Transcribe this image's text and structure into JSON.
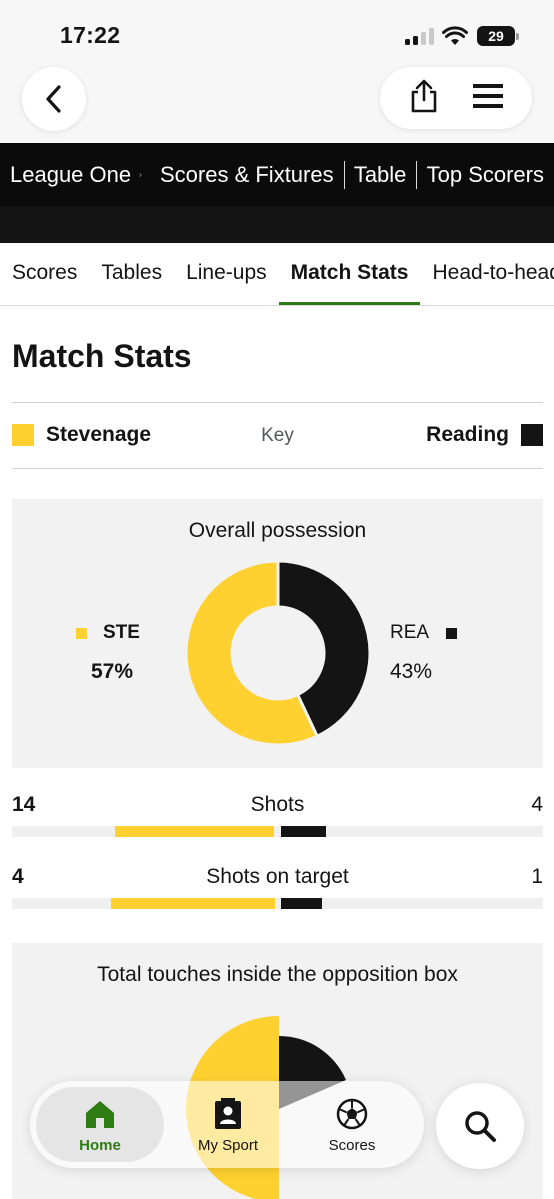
{
  "status_bar": {
    "time": "17:22",
    "battery": "29"
  },
  "league_nav": {
    "competition": "League One",
    "links": [
      "Scores & Fixtures",
      "Table",
      "Top Scorers"
    ]
  },
  "tabs": [
    "Scores",
    "Tables",
    "Line-ups",
    "Match Stats",
    "Head-to-head"
  ],
  "active_tab": "Match Stats",
  "page_title": "Match Stats",
  "key": {
    "label": "Key",
    "home_team": "Stevenage",
    "away_team": "Reading",
    "home_color": "#fed130",
    "away_color": "#141414"
  },
  "possession": {
    "title": "Overall possession",
    "home_abbr": "STE",
    "away_abbr": "REA",
    "home_pct": "57%",
    "away_pct": "43%",
    "home_value": 57,
    "away_value": 43
  },
  "stats": [
    {
      "label": "Shots",
      "home": "14",
      "away": "4",
      "home_value": 14,
      "away_value": 4
    },
    {
      "label": "Shots on target",
      "home": "4",
      "away": "1",
      "home_value": 4,
      "away_value": 1
    }
  ],
  "touches": {
    "title": "Total touches inside the opposition box"
  },
  "bottom_nav": {
    "items": [
      {
        "label": "Home",
        "icon": "house-icon"
      },
      {
        "label": "My Sport",
        "icon": "person-card-icon"
      },
      {
        "label": "Scores",
        "icon": "football-icon"
      }
    ],
    "search_icon": "magnifier-icon"
  },
  "chart_data": [
    {
      "type": "pie",
      "title": "Overall possession",
      "categories": [
        "STE",
        "REA"
      ],
      "values": [
        57,
        43
      ]
    },
    {
      "type": "bar",
      "categories": [
        "Shots",
        "Shots on target"
      ],
      "series": [
        {
          "name": "Stevenage",
          "values": [
            14,
            4
          ]
        },
        {
          "name": "Reading",
          "values": [
            4,
            1
          ]
        }
      ]
    }
  ]
}
